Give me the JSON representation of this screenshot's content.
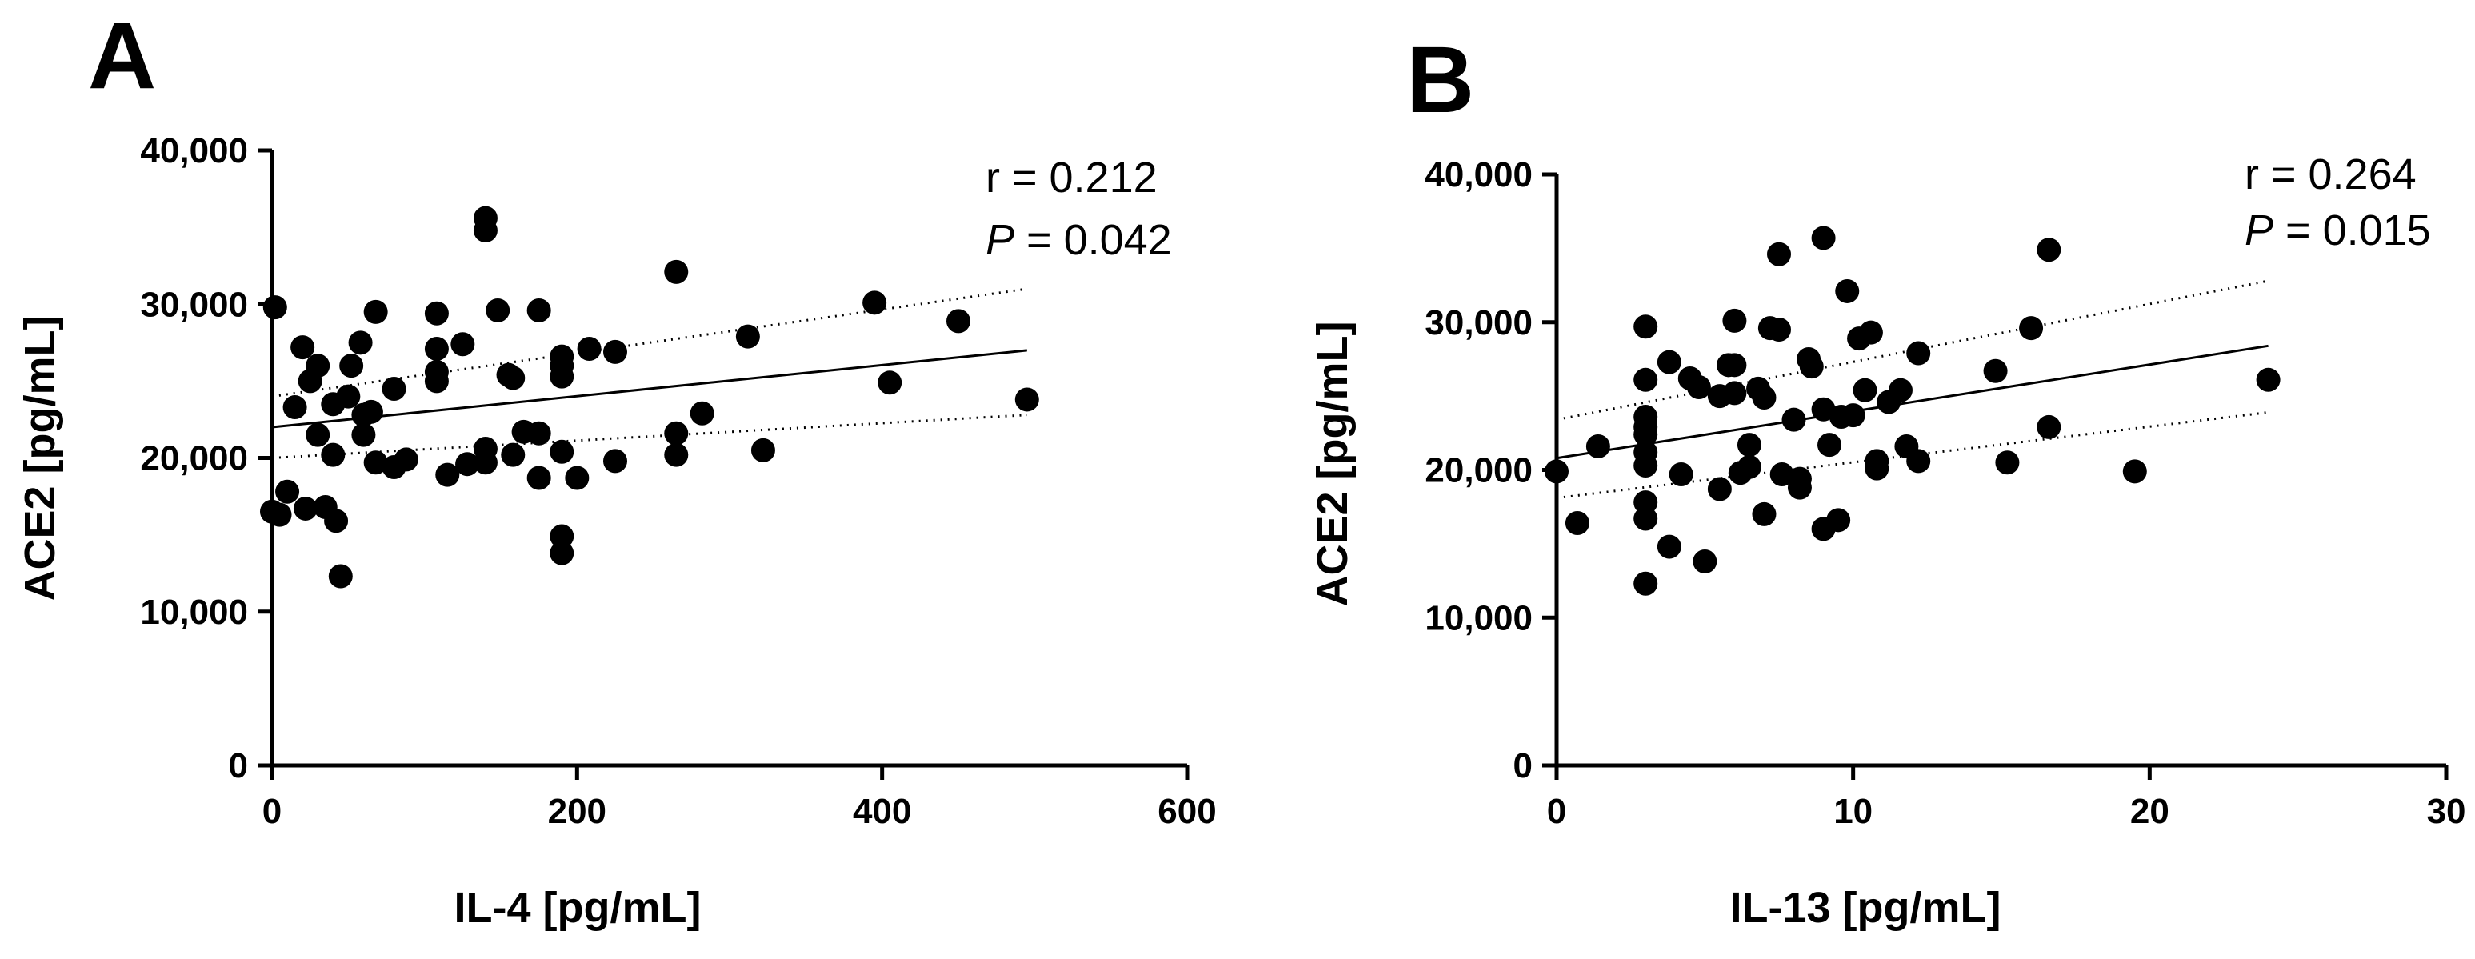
{
  "chart_data": [
    {
      "panel": "A",
      "type": "scatter",
      "xlabel": "IL-4 [pg/mL]",
      "ylabel": "ACE2 [pg/mL]",
      "xlim": [
        0,
        600
      ],
      "ylim": [
        0,
        40000
      ],
      "xticks": [
        0,
        200,
        400,
        600
      ],
      "xtick_labels": [
        "0",
        "200",
        "400",
        "600"
      ],
      "yticks": [
        0,
        10000,
        20000,
        30000,
        40000
      ],
      "ytick_labels": [
        "0",
        "10,000",
        "20,000",
        "30,000",
        "40,000"
      ],
      "stats": {
        "r_label": "r = 0.212",
        "p_symbol": "P",
        "p_value": " = 0.042"
      },
      "fit": {
        "x0": 0,
        "y0": 22000,
        "x1": 495,
        "y1": 27000
      },
      "ci_upper": {
        "x0": 0,
        "y0": 24000,
        "x1": 495,
        "y1": 31000
      },
      "ci_lower": {
        "x0": 0,
        "y0": 20000,
        "x1": 495,
        "y1": 22800
      },
      "points": [
        [
          2,
          29800
        ],
        [
          0,
          16500
        ],
        [
          5,
          16300
        ],
        [
          10,
          17800
        ],
        [
          15,
          23300
        ],
        [
          20,
          27200
        ],
        [
          25,
          25000
        ],
        [
          22,
          16700
        ],
        [
          30,
          26000
        ],
        [
          30,
          21500
        ],
        [
          35,
          16800
        ],
        [
          40,
          20200
        ],
        [
          42,
          15900
        ],
        [
          40,
          23500
        ],
        [
          45,
          12300
        ],
        [
          50,
          24000
        ],
        [
          52,
          26000
        ],
        [
          58,
          27500
        ],
        [
          60,
          21500
        ],
        [
          60,
          22800
        ],
        [
          65,
          23000
        ],
        [
          68,
          29500
        ],
        [
          68,
          19700
        ],
        [
          80,
          24500
        ],
        [
          80,
          19400
        ],
        [
          88,
          19900
        ],
        [
          108,
          29400
        ],
        [
          108,
          27100
        ],
        [
          108,
          25600
        ],
        [
          108,
          25000
        ],
        [
          115,
          18900
        ],
        [
          125,
          27400
        ],
        [
          128,
          19600
        ],
        [
          140,
          35600
        ],
        [
          140,
          34800
        ],
        [
          140,
          20600
        ],
        [
          140,
          19700
        ],
        [
          148,
          29600
        ],
        [
          155,
          25400
        ],
        [
          158,
          25200
        ],
        [
          158,
          20200
        ],
        [
          165,
          21700
        ],
        [
          175,
          29600
        ],
        [
          175,
          21600
        ],
        [
          175,
          18700
        ],
        [
          190,
          26600
        ],
        [
          190,
          26000
        ],
        [
          190,
          25300
        ],
        [
          190,
          20400
        ],
        [
          190,
          14900
        ],
        [
          190,
          13800
        ],
        [
          200,
          18700
        ],
        [
          208,
          27100
        ],
        [
          225,
          26900
        ],
        [
          225,
          19800
        ],
        [
          265,
          32100
        ],
        [
          265,
          21600
        ],
        [
          265,
          20200
        ],
        [
          282,
          22900
        ],
        [
          312,
          27900
        ],
        [
          322,
          20500
        ],
        [
          395,
          30100
        ],
        [
          405,
          24900
        ],
        [
          450,
          28900
        ],
        [
          495,
          23800
        ]
      ]
    },
    {
      "panel": "B",
      "type": "scatter",
      "xlabel": "IL-13 [pg/mL]",
      "ylabel": "ACE2 [pg/mL]",
      "xlim": [
        0,
        30
      ],
      "ylim": [
        0,
        40000
      ],
      "xticks": [
        0,
        10,
        20,
        30
      ],
      "xtick_labels": [
        "0",
        "10",
        "20",
        "30"
      ],
      "yticks": [
        0,
        10000,
        20000,
        30000,
        40000
      ],
      "ytick_labels": [
        "0",
        "10,000",
        "20,000",
        "30,000",
        "40,000"
      ],
      "stats": {
        "r_label": "r = 0.264",
        "p_symbol": "P",
        "p_value": " = 0.015"
      },
      "fit": {
        "x0": 0,
        "y0": 20800,
        "x1": 24,
        "y1": 28400
      },
      "ci_upper": {
        "x0": 0,
        "y0": 23400,
        "x1": 24,
        "y1": 32800
      },
      "ci_lower": {
        "x0": 0,
        "y0": 18100,
        "x1": 24,
        "y1": 23900
      },
      "points": [
        [
          0,
          19900
        ],
        [
          0.7,
          16400
        ],
        [
          1.4,
          21600
        ],
        [
          3,
          29700
        ],
        [
          3,
          26100
        ],
        [
          3,
          23600
        ],
        [
          3,
          22900
        ],
        [
          3,
          22400
        ],
        [
          3,
          21200
        ],
        [
          3,
          20300
        ],
        [
          3,
          17800
        ],
        [
          3,
          16700
        ],
        [
          3,
          12300
        ],
        [
          3.8,
          27300
        ],
        [
          3.8,
          14800
        ],
        [
          4.2,
          19700
        ],
        [
          4.5,
          26200
        ],
        [
          4.8,
          25600
        ],
        [
          5,
          13800
        ],
        [
          5.5,
          18700
        ],
        [
          5.5,
          25000
        ],
        [
          5.8,
          27100
        ],
        [
          6,
          30100
        ],
        [
          6,
          27100
        ],
        [
          6,
          25200
        ],
        [
          6.2,
          19800
        ],
        [
          6.5,
          21700
        ],
        [
          6.5,
          20200
        ],
        [
          6.8,
          25500
        ],
        [
          7,
          24900
        ],
        [
          7,
          17000
        ],
        [
          7.2,
          29600
        ],
        [
          7.5,
          34600
        ],
        [
          7.5,
          29500
        ],
        [
          7.6,
          19700
        ],
        [
          8,
          23400
        ],
        [
          8.2,
          19400
        ],
        [
          8.2,
          18800
        ],
        [
          8.5,
          27500
        ],
        [
          8.6,
          27000
        ],
        [
          9,
          35700
        ],
        [
          9,
          24100
        ],
        [
          9,
          16000
        ],
        [
          9.2,
          21700
        ],
        [
          9.5,
          16600
        ],
        [
          9.6,
          23600
        ],
        [
          9.8,
          32100
        ],
        [
          10,
          23700
        ],
        [
          10.2,
          28900
        ],
        [
          10.4,
          25400
        ],
        [
          10.6,
          29300
        ],
        [
          10.8,
          20600
        ],
        [
          10.8,
          20100
        ],
        [
          11.2,
          24600
        ],
        [
          11.6,
          25400
        ],
        [
          11.8,
          21600
        ],
        [
          12.2,
          27900
        ],
        [
          12.2,
          20600
        ],
        [
          14.8,
          26700
        ],
        [
          15.2,
          20500
        ],
        [
          16,
          29600
        ],
        [
          16.6,
          22900
        ],
        [
          16.6,
          34900
        ],
        [
          19.5,
          19900
        ],
        [
          24,
          26100
        ]
      ]
    }
  ]
}
